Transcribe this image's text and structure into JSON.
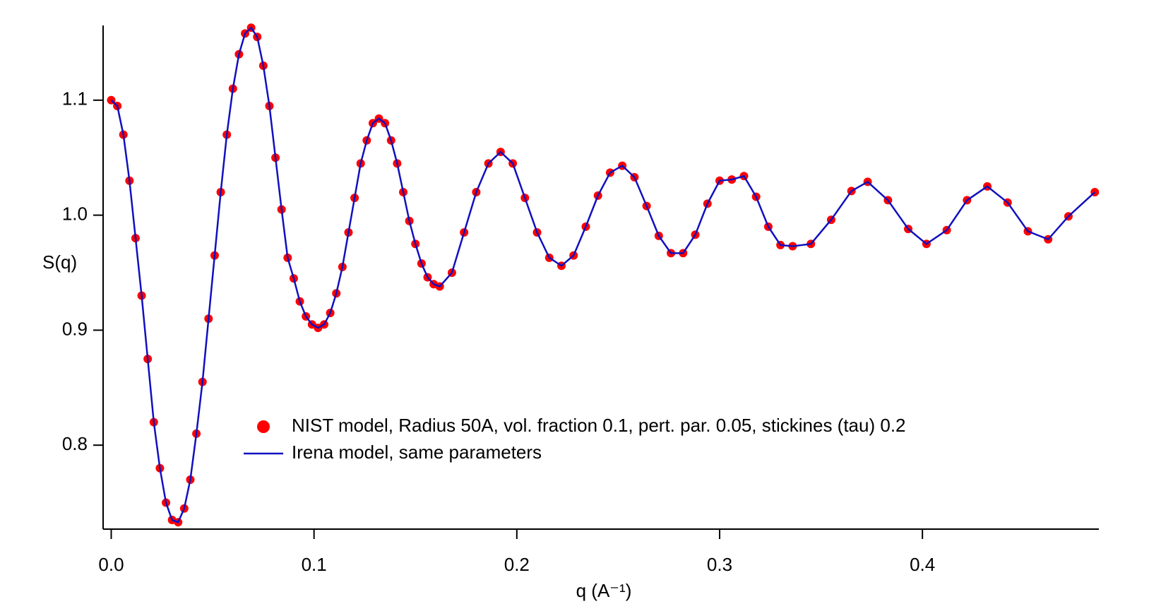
{
  "chart_data": {
    "type": "scatter",
    "xlabel": "q (A⁻¹)",
    "ylabel": "S(q)",
    "x": [
      0,
      0.003,
      0.006,
      0.009,
      0.012,
      0.015,
      0.018,
      0.021,
      0.024,
      0.027,
      0.03,
      0.033,
      0.036,
      0.039,
      0.042,
      0.045,
      0.048,
      0.051,
      0.054,
      0.057,
      0.06,
      0.063,
      0.066,
      0.069,
      0.072,
      0.075,
      0.078,
      0.081,
      0.084,
      0.087,
      0.09,
      0.093,
      0.096,
      0.099,
      0.102,
      0.105,
      0.108,
      0.111,
      0.114,
      0.117,
      0.12,
      0.123,
      0.126,
      0.129,
      0.132,
      0.135,
      0.138,
      0.141,
      0.144,
      0.147,
      0.15,
      0.153,
      0.156,
      0.159,
      0.162,
      0.168,
      0.174,
      0.18,
      0.186,
      0.192,
      0.198,
      0.204,
      0.21,
      0.216,
      0.222,
      0.228,
      0.234,
      0.24,
      0.246,
      0.252,
      0.258,
      0.264,
      0.27,
      0.276,
      0.282,
      0.288,
      0.294,
      0.3,
      0.306,
      0.312,
      0.318,
      0.324,
      0.33,
      0.336,
      0.345,
      0.355,
      0.365,
      0.373,
      0.383,
      0.393,
      0.402,
      0.412,
      0.422,
      0.432,
      0.442,
      0.452,
      0.462,
      0.472,
      0.485
    ],
    "series": [
      {
        "name": "NIST model, Radius 50A, vol. fraction 0.1, pert. par. 0.05, stickines (tau) 0.2",
        "color": "#ff0000",
        "mode": "markers",
        "values": [
          1.1,
          1.095,
          1.07,
          1.03,
          0.98,
          0.93,
          0.875,
          0.82,
          0.78,
          0.75,
          0.735,
          0.733,
          0.745,
          0.77,
          0.81,
          0.855,
          0.91,
          0.965,
          1.02,
          1.07,
          1.11,
          1.14,
          1.158,
          1.163,
          1.155,
          1.13,
          1.095,
          1.05,
          1.005,
          0.963,
          0.945,
          0.925,
          0.912,
          0.905,
          0.902,
          0.905,
          0.915,
          0.932,
          0.955,
          0.985,
          1.015,
          1.045,
          1.065,
          1.08,
          1.084,
          1.08,
          1.065,
          1.045,
          1.02,
          0.995,
          0.975,
          0.958,
          0.946,
          0.94,
          0.938,
          0.95,
          0.985,
          1.02,
          1.045,
          1.055,
          1.045,
          1.015,
          0.985,
          0.963,
          0.956,
          0.965,
          0.99,
          1.017,
          1.037,
          1.043,
          1.033,
          1.008,
          0.982,
          0.967,
          0.967,
          0.983,
          1.01,
          1.03,
          1.031,
          1.034,
          1.016,
          0.99,
          0.974,
          0.973,
          0.975,
          0.996,
          1.021,
          1.029,
          1.013,
          0.988,
          0.975,
          0.987,
          1.013,
          1.025,
          1.011,
          0.986,
          0.979,
          0.999,
          1.02
        ]
      },
      {
        "name": "Irena model, same parameters",
        "color": "#1010c0",
        "mode": "lines",
        "values": [
          1.1,
          1.095,
          1.07,
          1.03,
          0.98,
          0.93,
          0.875,
          0.82,
          0.78,
          0.75,
          0.735,
          0.733,
          0.745,
          0.77,
          0.81,
          0.855,
          0.91,
          0.965,
          1.02,
          1.07,
          1.11,
          1.14,
          1.158,
          1.163,
          1.155,
          1.13,
          1.095,
          1.05,
          1.005,
          0.963,
          0.945,
          0.925,
          0.912,
          0.905,
          0.902,
          0.905,
          0.915,
          0.932,
          0.955,
          0.985,
          1.015,
          1.045,
          1.065,
          1.08,
          1.084,
          1.08,
          1.065,
          1.045,
          1.02,
          0.995,
          0.975,
          0.958,
          0.946,
          0.94,
          0.938,
          0.95,
          0.985,
          1.02,
          1.045,
          1.055,
          1.045,
          1.015,
          0.985,
          0.963,
          0.956,
          0.965,
          0.99,
          1.017,
          1.037,
          1.043,
          1.033,
          1.008,
          0.982,
          0.967,
          0.967,
          0.983,
          1.01,
          1.03,
          1.031,
          1.034,
          1.016,
          0.99,
          0.974,
          0.973,
          0.975,
          0.996,
          1.021,
          1.029,
          1.013,
          0.988,
          0.975,
          0.987,
          1.013,
          1.025,
          1.011,
          0.986,
          0.979,
          0.999,
          1.02
        ]
      }
    ],
    "xlim": [
      -0.004,
      0.487
    ],
    "ylim": [
      0.727,
      1.165
    ],
    "xticks": [
      {
        "value": 0,
        "label": "0.0"
      },
      0.1,
      0.2,
      0.3,
      0.4
    ],
    "yticks": [
      0.8,
      0.9,
      {
        "value": 1,
        "label": "1.0"
      },
      1.1
    ],
    "grid": false,
    "legend": "lower-right"
  }
}
